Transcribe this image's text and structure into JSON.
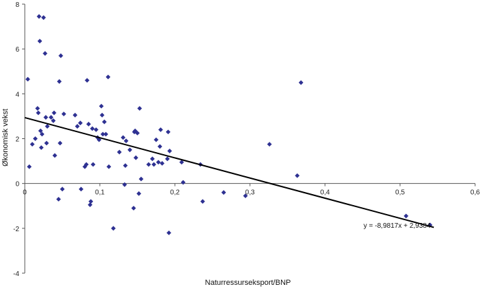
{
  "chart_data": {
    "type": "scatter",
    "title": "",
    "xlabel": "Naturressurseksport/BNP",
    "ylabel": "Økonomisk vekst",
    "xlim": [
      0,
      0.6
    ],
    "ylim": [
      -4,
      8
    ],
    "x_ticks": [
      0,
      0.1,
      0.2,
      0.3,
      0.4,
      0.5,
      0.6
    ],
    "y_ticks": [
      -4,
      -2,
      0,
      2,
      4,
      6,
      8
    ],
    "x_tick_labels": [
      "0",
      "0,1",
      "0,2",
      "0,3",
      "0,4",
      "0,5",
      "0,6"
    ],
    "y_tick_labels": [
      "-4",
      "-2",
      "0",
      "2",
      "4",
      "6",
      "8"
    ],
    "grid": false,
    "marker_color": "#2e3192",
    "series": [
      {
        "points": [
          [
            0.004,
            4.65
          ],
          [
            0.006,
            0.75
          ],
          [
            0.01,
            1.75
          ],
          [
            0.014,
            2.0
          ],
          [
            0.017,
            3.35
          ],
          [
            0.018,
            3.15
          ],
          [
            0.019,
            7.45
          ],
          [
            0.02,
            6.35
          ],
          [
            0.021,
            2.35
          ],
          [
            0.022,
            1.6
          ],
          [
            0.023,
            2.2
          ],
          [
            0.025,
            7.4
          ],
          [
            0.027,
            5.8
          ],
          [
            0.028,
            2.95
          ],
          [
            0.029,
            1.8
          ],
          [
            0.03,
            2.55
          ],
          [
            0.035,
            2.95
          ],
          [
            0.038,
            2.8
          ],
          [
            0.039,
            3.15
          ],
          [
            0.04,
            1.25
          ],
          [
            0.045,
            -0.7
          ],
          [
            0.046,
            4.55
          ],
          [
            0.047,
            1.8
          ],
          [
            0.048,
            5.7
          ],
          [
            0.05,
            -0.25
          ],
          [
            0.052,
            3.1
          ],
          [
            0.067,
            3.05
          ],
          [
            0.07,
            2.55
          ],
          [
            0.074,
            2.7
          ],
          [
            0.075,
            -0.25
          ],
          [
            0.08,
            0.75
          ],
          [
            0.082,
            0.85
          ],
          [
            0.083,
            4.6
          ],
          [
            0.085,
            2.65
          ],
          [
            0.087,
            -0.95
          ],
          [
            0.088,
            -0.8
          ],
          [
            0.09,
            2.45
          ],
          [
            0.091,
            0.85
          ],
          [
            0.095,
            2.4
          ],
          [
            0.097,
            2.05
          ],
          [
            0.099,
            1.95
          ],
          [
            0.102,
            3.45
          ],
          [
            0.103,
            3.05
          ],
          [
            0.104,
            2.2
          ],
          [
            0.106,
            2.75
          ],
          [
            0.108,
            2.2
          ],
          [
            0.111,
            4.75
          ],
          [
            0.112,
            0.75
          ],
          [
            0.118,
            -2.0
          ],
          [
            0.126,
            1.4
          ],
          [
            0.131,
            2.05
          ],
          [
            0.133,
            -0.05
          ],
          [
            0.134,
            0.8
          ],
          [
            0.135,
            1.9
          ],
          [
            0.14,
            1.5
          ],
          [
            0.145,
            -1.1
          ],
          [
            0.146,
            2.3
          ],
          [
            0.147,
            2.35
          ],
          [
            0.148,
            1.15
          ],
          [
            0.15,
            2.25
          ],
          [
            0.152,
            -0.45
          ],
          [
            0.153,
            3.35
          ],
          [
            0.155,
            0.2
          ],
          [
            0.165,
            0.85
          ],
          [
            0.17,
            1.1
          ],
          [
            0.172,
            0.85
          ],
          [
            0.175,
            1.95
          ],
          [
            0.178,
            0.95
          ],
          [
            0.18,
            1.65
          ],
          [
            0.181,
            2.4
          ],
          [
            0.183,
            0.9
          ],
          [
            0.19,
            1.1
          ],
          [
            0.191,
            2.3
          ],
          [
            0.192,
            -2.2
          ],
          [
            0.193,
            1.45
          ],
          [
            0.209,
            0.95
          ],
          [
            0.211,
            0.05
          ],
          [
            0.234,
            0.85
          ],
          [
            0.237,
            -0.8
          ],
          [
            0.265,
            -0.4
          ],
          [
            0.294,
            -0.55
          ],
          [
            0.326,
            1.75
          ],
          [
            0.363,
            0.35
          ],
          [
            0.368,
            4.5
          ],
          [
            0.508,
            -1.45
          ],
          [
            0.54,
            -1.85
          ]
        ]
      }
    ],
    "trendline": {
      "slope": -8.9817,
      "intercept": 2.9384,
      "x_range": [
        0,
        0.545
      ],
      "equation_label": "y = -8,9817x + 2,9384"
    }
  }
}
